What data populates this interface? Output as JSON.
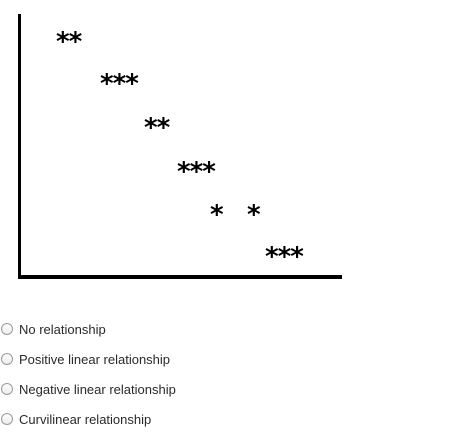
{
  "question": {
    "scatter_plot": {
      "marks": [
        {
          "text": "**"
        },
        {
          "text": "***"
        },
        {
          "text": "**"
        },
        {
          "text": "***"
        },
        {
          "text": "*"
        },
        {
          "text": "*"
        },
        {
          "text": "***"
        }
      ]
    },
    "options": [
      {
        "label": "No relationship"
      },
      {
        "label": "Positive linear relationship"
      },
      {
        "label": "Negative linear relationship"
      },
      {
        "label": "Curvilinear relationship"
      }
    ]
  }
}
